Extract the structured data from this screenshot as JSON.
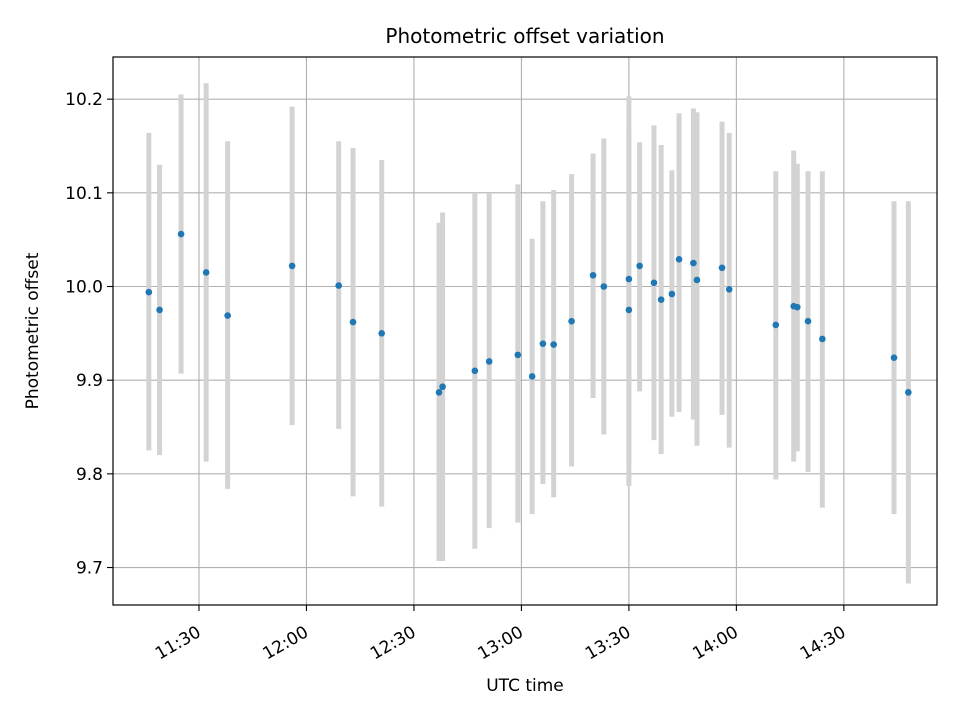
{
  "chart_data": {
    "type": "scatter",
    "title": "Photometric offset variation",
    "xlabel": "UTC time",
    "ylabel": "Photometric offset",
    "x_unit": "UTC clock time (HH:MM)",
    "xlim": [
      "11:06",
      "14:56"
    ],
    "ylim": [
      9.66,
      10.245
    ],
    "x_ticks": [
      "11:30",
      "12:00",
      "12:30",
      "13:00",
      "13:30",
      "14:00",
      "14:30"
    ],
    "y_ticks": [
      9.7,
      9.8,
      9.9,
      10.0,
      10.1,
      10.2
    ],
    "y_tick_labels": [
      "9.7",
      "9.8",
      "9.9",
      "10.0",
      "10.1",
      "10.2"
    ],
    "grid": true,
    "marker_color": "#1f77b4",
    "errorbar_color": "#d3d3d3",
    "points": [
      {
        "x": "11:16",
        "y": 9.994,
        "ylow": 9.825,
        "yhigh": 10.164
      },
      {
        "x": "11:19",
        "y": 9.975,
        "ylow": 9.82,
        "yhigh": 10.13
      },
      {
        "x": "11:25",
        "y": 10.056,
        "ylow": 9.907,
        "yhigh": 10.205
      },
      {
        "x": "11:32",
        "y": 10.015,
        "ylow": 9.813,
        "yhigh": 10.217
      },
      {
        "x": "11:38",
        "y": 9.969,
        "ylow": 9.784,
        "yhigh": 10.155
      },
      {
        "x": "11:56",
        "y": 10.022,
        "ylow": 9.852,
        "yhigh": 10.192
      },
      {
        "x": "12:09",
        "y": 10.001,
        "ylow": 9.848,
        "yhigh": 10.155
      },
      {
        "x": "12:13",
        "y": 9.962,
        "ylow": 9.776,
        "yhigh": 10.148
      },
      {
        "x": "12:21",
        "y": 9.95,
        "ylow": 9.765,
        "yhigh": 10.135
      },
      {
        "x": "12:37",
        "y": 9.887,
        "ylow": 9.707,
        "yhigh": 10.068
      },
      {
        "x": "12:38",
        "y": 9.893,
        "ylow": 9.707,
        "yhigh": 10.079
      },
      {
        "x": "12:47",
        "y": 9.91,
        "ylow": 9.72,
        "yhigh": 10.1
      },
      {
        "x": "12:51",
        "y": 9.92,
        "ylow": 9.742,
        "yhigh": 10.099
      },
      {
        "x": "12:59",
        "y": 9.927,
        "ylow": 9.748,
        "yhigh": 10.109
      },
      {
        "x": "13:03",
        "y": 9.904,
        "ylow": 9.757,
        "yhigh": 10.051
      },
      {
        "x": "13:06",
        "y": 9.939,
        "ylow": 9.789,
        "yhigh": 10.091
      },
      {
        "x": "13:09",
        "y": 9.938,
        "ylow": 9.775,
        "yhigh": 10.103
      },
      {
        "x": "13:14",
        "y": 9.963,
        "ylow": 9.808,
        "yhigh": 10.12
      },
      {
        "x": "13:20",
        "y": 10.012,
        "ylow": 9.881,
        "yhigh": 10.142
      },
      {
        "x": "13:23",
        "y": 10.0,
        "ylow": 9.842,
        "yhigh": 10.158
      },
      {
        "x": "13:30",
        "y": 9.975,
        "ylow": 9.787,
        "yhigh": 10.163
      },
      {
        "x": "13:30",
        "y": 10.008,
        "ylow": 9.81,
        "yhigh": 10.203
      },
      {
        "x": "13:33",
        "y": 10.022,
        "ylow": 9.888,
        "yhigh": 10.154
      },
      {
        "x": "13:37",
        "y": 10.004,
        "ylow": 9.836,
        "yhigh": 10.172
      },
      {
        "x": "13:39",
        "y": 9.986,
        "ylow": 9.821,
        "yhigh": 10.151
      },
      {
        "x": "13:42",
        "y": 9.992,
        "ylow": 9.861,
        "yhigh": 10.124
      },
      {
        "x": "13:44",
        "y": 10.029,
        "ylow": 9.866,
        "yhigh": 10.185
      },
      {
        "x": "13:48",
        "y": 10.025,
        "ylow": 9.858,
        "yhigh": 10.19
      },
      {
        "x": "13:49",
        "y": 10.007,
        "ylow": 9.83,
        "yhigh": 10.186
      },
      {
        "x": "13:56",
        "y": 10.02,
        "ylow": 9.863,
        "yhigh": 10.176
      },
      {
        "x": "13:58",
        "y": 9.997,
        "ylow": 9.828,
        "yhigh": 10.164
      },
      {
        "x": "14:11",
        "y": 9.959,
        "ylow": 9.794,
        "yhigh": 10.123
      },
      {
        "x": "14:16",
        "y": 9.979,
        "ylow": 9.813,
        "yhigh": 10.145
      },
      {
        "x": "14:17",
        "y": 9.978,
        "ylow": 9.824,
        "yhigh": 10.131
      },
      {
        "x": "14:20",
        "y": 9.963,
        "ylow": 9.802,
        "yhigh": 10.123
      },
      {
        "x": "14:24",
        "y": 9.944,
        "ylow": 9.764,
        "yhigh": 10.123
      },
      {
        "x": "14:44",
        "y": 9.924,
        "ylow": 9.757,
        "yhigh": 10.091
      },
      {
        "x": "14:48",
        "y": 9.887,
        "ylow": 9.683,
        "yhigh": 10.091
      }
    ]
  }
}
